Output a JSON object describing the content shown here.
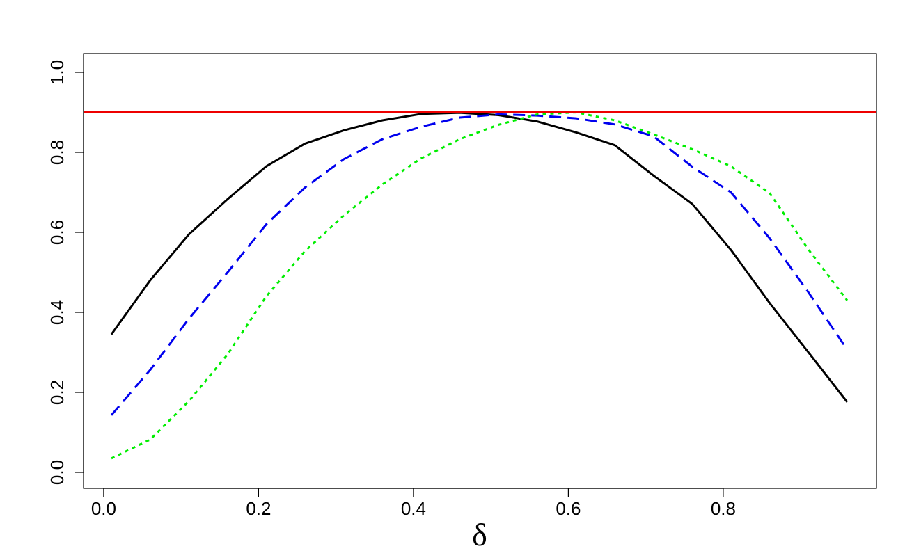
{
  "chart_data": {
    "type": "line",
    "title": "",
    "xlabel": "δ",
    "ylabel": "",
    "xlim": [
      0.01,
      0.96
    ],
    "ylim": [
      0.0,
      1.0
    ],
    "xticks": [
      0.0,
      0.2,
      0.4,
      0.6,
      0.8
    ],
    "xtick_labels": [
      "0.0",
      "0.2",
      "0.4",
      "0.6",
      "0.8"
    ],
    "yticks": [
      0.0,
      0.2,
      0.4,
      0.6,
      0.8,
      1.0
    ],
    "ytick_labels": [
      "0.0",
      "0.2",
      "0.4",
      "0.6",
      "0.8",
      "1.0"
    ],
    "grid": false,
    "legend": "none",
    "x": [
      0.01,
      0.06,
      0.11,
      0.16,
      0.21,
      0.26,
      0.31,
      0.36,
      0.41,
      0.46,
      0.51,
      0.56,
      0.61,
      0.66,
      0.71,
      0.76,
      0.81,
      0.86,
      0.91,
      0.96
    ],
    "series": [
      {
        "style": "solid",
        "color": "#000000",
        "values": [
          0.345,
          0.48,
          0.595,
          0.683,
          0.765,
          0.822,
          0.855,
          0.88,
          0.896,
          0.899,
          0.893,
          0.877,
          0.85,
          0.818,
          0.742,
          0.671,
          0.556,
          0.423,
          0.3,
          0.176
        ]
      },
      {
        "style": "dashed",
        "color": "#0000ee",
        "values": [
          0.143,
          0.256,
          0.384,
          0.5,
          0.62,
          0.712,
          0.783,
          0.833,
          0.864,
          0.887,
          0.895,
          0.892,
          0.885,
          0.87,
          0.84,
          0.764,
          0.7,
          0.585,
          0.45,
          0.307
        ]
      },
      {
        "style": "dotted",
        "color": "#00ee00",
        "values": [
          0.035,
          0.082,
          0.178,
          0.295,
          0.44,
          0.553,
          0.642,
          0.72,
          0.785,
          0.833,
          0.869,
          0.895,
          0.9,
          0.88,
          0.845,
          0.808,
          0.765,
          0.698,
          0.557,
          0.43
        ]
      }
    ],
    "reference_line": {
      "y": 0.9,
      "color": "#ee0000"
    }
  }
}
